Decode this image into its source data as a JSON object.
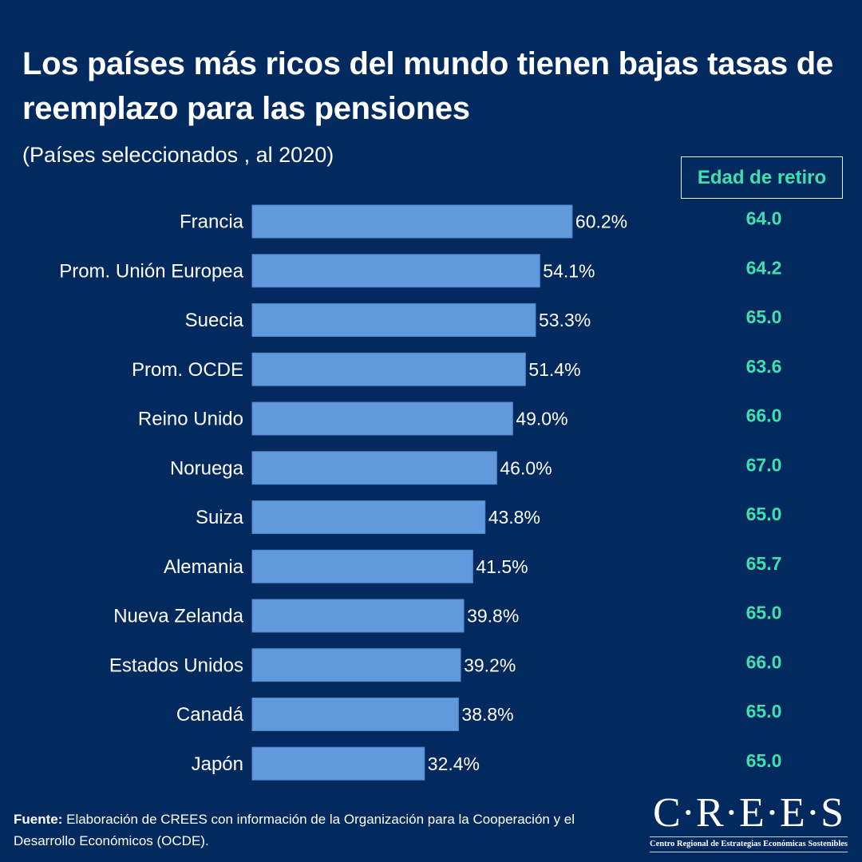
{
  "header": {
    "title": "Los países más ricos del mundo tienen bajas tasas de reemplazo para las pensiones",
    "subtitle": "(Países seleccionados , al 2020)",
    "column_header": "Edad de retiro"
  },
  "colors": {
    "background": "#032a5e",
    "bar": "#6199dd",
    "accent": "#3fe0b0",
    "text": "#ffffff"
  },
  "chart_data": {
    "type": "bar",
    "orientation": "horizontal",
    "title": "Los países más ricos del mundo tienen bajas tasas de reemplazo para las pensiones",
    "subtitle": "(Países seleccionados , al 2020)",
    "xlabel": "",
    "ylabel": "",
    "unit": "%",
    "xlim": [
      0,
      60.2
    ],
    "grid": false,
    "legend": "none",
    "categories": [
      "Francia",
      "Prom. Unión Europea",
      "Suecia",
      "Prom. OCDE",
      "Reino Unido",
      "Noruega",
      "Suiza",
      "Alemania",
      "Nueva Zelanda",
      "Estados Unidos",
      "Canadá",
      "Japón"
    ],
    "values": [
      60.2,
      54.1,
      53.3,
      51.4,
      49.0,
      46.0,
      43.8,
      41.5,
      39.8,
      39.2,
      38.8,
      32.4
    ],
    "value_labels": [
      "60.2%",
      "54.1%",
      "53.3%",
      "51.4%",
      "49.0%",
      "46.0%",
      "43.8%",
      "41.5%",
      "39.8%",
      "39.2%",
      "38.8%",
      "32.4%"
    ],
    "side_column": {
      "header": "Edad de retiro",
      "values": [
        64.0,
        64.2,
        65.0,
        63.6,
        66.0,
        67.0,
        65.0,
        65.7,
        65.0,
        66.0,
        65.0,
        65.0
      ],
      "labels": [
        "64.0",
        "64.2",
        "65.0",
        "63.6",
        "66.0",
        "67.0",
        "65.0",
        "65.7",
        "65.0",
        "66.0",
        "65.0",
        "65.0"
      ]
    }
  },
  "footer": {
    "source_label": "Fuente:",
    "source_text": " Elaboración de CREES con información de la Organización para la Cooperación y el Desarrollo Económicos (OCDE).",
    "logo_main": "C·R·E·E·S",
    "logo_sub": "Centro Regional de Estrategias Económicas Sostenibles"
  }
}
